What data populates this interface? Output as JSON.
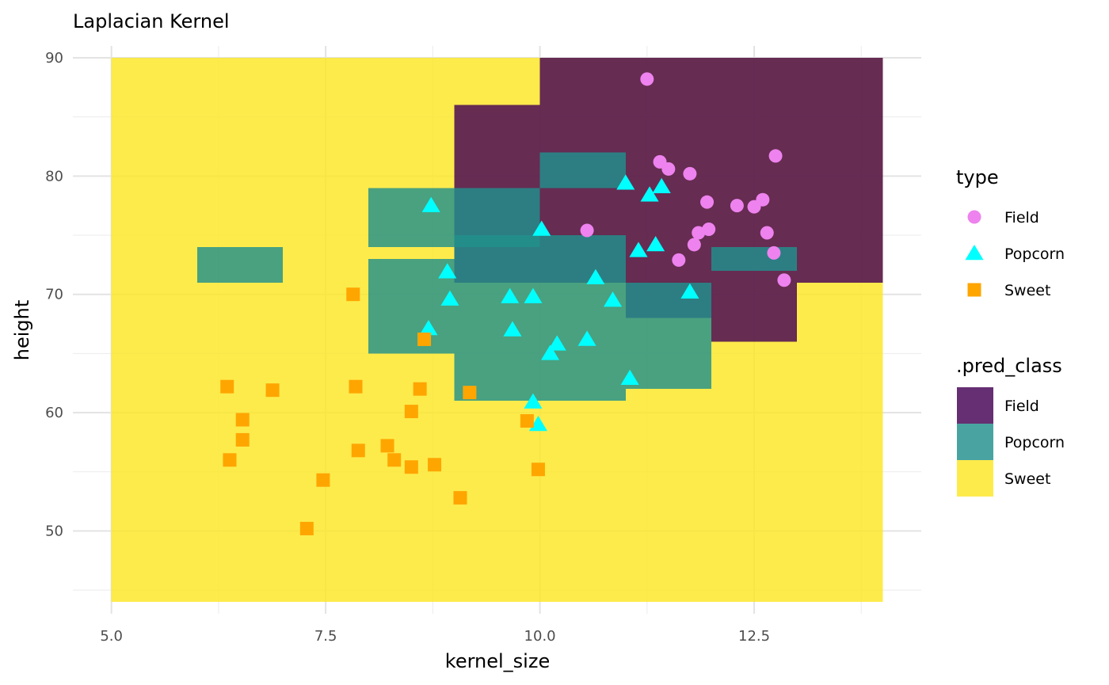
{
  "chart_data": {
    "type": "scatter",
    "title": "Laplacian Kernel",
    "xlabel": "kernel_size",
    "ylabel": "height",
    "xlim": [
      4.55,
      14.45
    ],
    "ylim": [
      43,
      91
    ],
    "x_ticks": [
      {
        "value": 5.0,
        "label": "5.0"
      },
      {
        "value": 7.5,
        "label": "7.5"
      },
      {
        "value": 10.0,
        "label": "10.0"
      },
      {
        "value": 12.5,
        "label": "12.5"
      }
    ],
    "y_ticks": [
      {
        "value": 50,
        "label": "50"
      },
      {
        "value": 60,
        "label": "60"
      },
      {
        "value": 70,
        "label": "70"
      },
      {
        "value": 80,
        "label": "80"
      },
      {
        "value": 90,
        "label": "90"
      }
    ],
    "grid": true,
    "legend_position": "right",
    "colors": {
      "Field_point": "#EE82EE",
      "Popcorn_point": "#00FFFF",
      "Sweet_point": "#FFA500",
      "Field_fill": "#440154",
      "Popcorn_fill": "#21908C",
      "Sweet_fill": "#FDE725"
    },
    "legends": [
      {
        "title": "type",
        "kind": "points",
        "entries": [
          {
            "label": "Field",
            "shape": "circle",
            "color": "#EE82EE"
          },
          {
            "label": "Popcorn",
            "shape": "triangle",
            "color": "#00FFFF"
          },
          {
            "label": "Sweet",
            "shape": "square",
            "color": "#FFA500"
          }
        ]
      },
      {
        "title": ".pred_class",
        "kind": "fill",
        "entries": [
          {
            "label": "Field",
            "color": "#440154"
          },
          {
            "label": "Popcorn",
            "color": "#21908C"
          },
          {
            "label": "Sweet",
            "color": "#FDE725"
          }
        ]
      }
    ],
    "prediction_regions": [
      {
        "class": "Sweet",
        "x": [
          5,
          14
        ],
        "y": [
          44,
          90
        ]
      },
      {
        "class": "Field",
        "x": [
          10,
          14
        ],
        "y": [
          86,
          90
        ]
      },
      {
        "class": "Field",
        "x": [
          9,
          14
        ],
        "y": [
          81,
          86
        ]
      },
      {
        "class": "Field",
        "x": [
          9,
          14
        ],
        "y": [
          71,
          81
        ]
      },
      {
        "class": "Field",
        "x": [
          12,
          13
        ],
        "y": [
          66,
          71
        ]
      },
      {
        "class": "Field",
        "x": [
          11,
          12
        ],
        "y": [
          68,
          71
        ]
      },
      {
        "class": "Popcorn",
        "x": [
          6,
          7
        ],
        "y": [
          71,
          74
        ]
      },
      {
        "class": "Popcorn",
        "x": [
          8,
          10
        ],
        "y": [
          74,
          79
        ]
      },
      {
        "class": "Popcorn",
        "x": [
          10,
          11
        ],
        "y": [
          79,
          82
        ]
      },
      {
        "class": "Popcorn",
        "x": [
          8,
          9
        ],
        "y": [
          65,
          73
        ]
      },
      {
        "class": "Popcorn",
        "x": [
          9,
          11
        ],
        "y": [
          61,
          75
        ]
      },
      {
        "class": "Popcorn",
        "x": [
          11,
          12
        ],
        "y": [
          62,
          71
        ]
      },
      {
        "class": "Popcorn",
        "x": [
          12,
          13
        ],
        "y": [
          72,
          74
        ]
      }
    ],
    "series": [
      {
        "name": "Field",
        "shape": "circle",
        "points": [
          {
            "x": 11.25,
            "y": 88.2
          },
          {
            "x": 11.4,
            "y": 81.2
          },
          {
            "x": 11.5,
            "y": 80.6
          },
          {
            "x": 11.75,
            "y": 80.2
          },
          {
            "x": 12.75,
            "y": 81.7
          },
          {
            "x": 11.95,
            "y": 77.8
          },
          {
            "x": 12.3,
            "y": 77.5
          },
          {
            "x": 12.5,
            "y": 77.4
          },
          {
            "x": 12.6,
            "y": 78.0
          },
          {
            "x": 10.55,
            "y": 75.4
          },
          {
            "x": 11.85,
            "y": 75.2
          },
          {
            "x": 11.97,
            "y": 75.5
          },
          {
            "x": 12.65,
            "y": 75.2
          },
          {
            "x": 11.8,
            "y": 74.2
          },
          {
            "x": 11.62,
            "y": 72.9
          },
          {
            "x": 12.73,
            "y": 73.5
          },
          {
            "x": 12.85,
            "y": 71.2
          }
        ]
      },
      {
        "name": "Popcorn",
        "shape": "triangle",
        "points": [
          {
            "x": 8.73,
            "y": 77.5
          },
          {
            "x": 10.02,
            "y": 75.5
          },
          {
            "x": 11.0,
            "y": 79.4
          },
          {
            "x": 11.28,
            "y": 78.4
          },
          {
            "x": 11.42,
            "y": 79.1
          },
          {
            "x": 11.15,
            "y": 73.7
          },
          {
            "x": 11.35,
            "y": 74.2
          },
          {
            "x": 8.92,
            "y": 71.9
          },
          {
            "x": 8.95,
            "y": 69.6
          },
          {
            "x": 9.65,
            "y": 69.8
          },
          {
            "x": 9.92,
            "y": 69.8
          },
          {
            "x": 10.65,
            "y": 71.4
          },
          {
            "x": 10.85,
            "y": 69.5
          },
          {
            "x": 11.75,
            "y": 70.2
          },
          {
            "x": 8.7,
            "y": 67.1
          },
          {
            "x": 9.68,
            "y": 67.0
          },
          {
            "x": 10.2,
            "y": 65.8
          },
          {
            "x": 10.12,
            "y": 65.0
          },
          {
            "x": 10.55,
            "y": 66.2
          },
          {
            "x": 11.05,
            "y": 62.9
          },
          {
            "x": 9.92,
            "y": 60.9
          },
          {
            "x": 9.98,
            "y": 59.0
          }
        ]
      },
      {
        "name": "Sweet",
        "shape": "square",
        "points": [
          {
            "x": 7.82,
            "y": 70.0
          },
          {
            "x": 8.65,
            "y": 66.2
          },
          {
            "x": 6.35,
            "y": 62.2
          },
          {
            "x": 6.88,
            "y": 61.9
          },
          {
            "x": 7.85,
            "y": 62.2
          },
          {
            "x": 8.6,
            "y": 62.0
          },
          {
            "x": 9.18,
            "y": 61.7
          },
          {
            "x": 6.53,
            "y": 59.4
          },
          {
            "x": 8.5,
            "y": 60.1
          },
          {
            "x": 9.85,
            "y": 59.3
          },
          {
            "x": 6.53,
            "y": 57.7
          },
          {
            "x": 6.38,
            "y": 56.0
          },
          {
            "x": 7.88,
            "y": 56.8
          },
          {
            "x": 8.22,
            "y": 57.2
          },
          {
            "x": 8.3,
            "y": 56.0
          },
          {
            "x": 8.5,
            "y": 55.4
          },
          {
            "x": 8.77,
            "y": 55.6
          },
          {
            "x": 9.98,
            "y": 55.2
          },
          {
            "x": 7.47,
            "y": 54.3
          },
          {
            "x": 9.07,
            "y": 52.8
          },
          {
            "x": 7.28,
            "y": 50.2
          }
        ]
      }
    ]
  }
}
